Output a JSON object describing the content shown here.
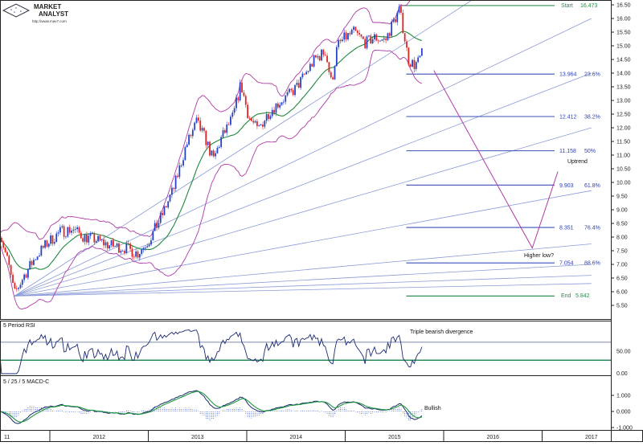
{
  "logo": {
    "line1": "MARKET",
    "line2": "ANALYST",
    "url": "http://www.mav7.com"
  },
  "chart_data": [
    {
      "type": "candlestick",
      "panel": "price",
      "x_unit": "year",
      "xlim": [
        2011.49,
        2017.5
      ],
      "ylim": [
        5.5,
        16.5
      ],
      "y_ticks": [
        "16.50",
        "16.00",
        "15.50",
        "15.00",
        "14.50",
        "14.00",
        "13.50",
        "13.00",
        "12.50",
        "12.00",
        "11.50",
        "11.00",
        "10.50",
        "10.00",
        "9.50",
        "9.00",
        "8.50",
        "8.00",
        "7.50",
        "7.00",
        "6.50",
        "6.00",
        "5.50"
      ],
      "x_ticks": [
        "11",
        "2012",
        "2013",
        "2014",
        "2015",
        "2016",
        "2017"
      ],
      "approx_close": {
        "t": [
          2011.49,
          2011.58,
          2011.64,
          2011.74,
          2011.86,
          2011.98,
          2012.11,
          2012.23,
          2012.35,
          2012.47,
          2012.6,
          2012.77,
          2012.89,
          2013.01,
          2013.14,
          2013.26,
          2013.38,
          2013.49,
          2013.58,
          2013.66,
          2013.74,
          2013.86,
          2013.94,
          2014.02,
          2014.11,
          2014.23,
          2014.35,
          2014.43,
          2014.51,
          2014.6,
          2014.69,
          2014.8,
          2014.86,
          2014.92,
          2015.0,
          2015.09,
          2015.21,
          2015.29,
          2015.41,
          2015.49,
          2015.55,
          2015.59,
          2015.64,
          2015.7,
          2015.74,
          2015.78
        ],
        "price": [
          8.2,
          7.0,
          5.9,
          6.6,
          7.3,
          7.8,
          8.2,
          8.3,
          8.0,
          7.9,
          7.7,
          7.6,
          7.4,
          7.9,
          8.8,
          9.8,
          11.3,
          12.2,
          11.6,
          10.8,
          11.6,
          12.4,
          13.6,
          12.4,
          11.9,
          12.6,
          13.0,
          13.2,
          13.5,
          14.0,
          14.5,
          14.8,
          13.6,
          15.0,
          15.3,
          15.5,
          15.1,
          15.3,
          15.2,
          15.9,
          16.3,
          15.6,
          14.5,
          14.3,
          14.4,
          14.7
        ]
      },
      "colors": {
        "up": "#2443c8",
        "down": "#e02424",
        "moving_average": "#1f8a3c",
        "bands": "#b03aa8",
        "fan": "#8a9ad8",
        "fib": "#3a4fb8",
        "fib_ends": "#2f8f52",
        "projection": "#b03aa8"
      },
      "fibonacci": {
        "start": {
          "label": "Start",
          "value": "16.473",
          "price": 16.473
        },
        "end": {
          "label": "End",
          "value": "5.842",
          "price": 5.842
        },
        "levels": [
          {
            "value": "13.964",
            "pct": "23.6%",
            "price": 13.964
          },
          {
            "value": "12.412",
            "pct": "38.2%",
            "price": 12.412
          },
          {
            "value": "11.158",
            "pct": "50%",
            "price": 11.158
          },
          {
            "value": "9.903",
            "pct": "61.8%",
            "price": 9.903
          },
          {
            "value": "8.351",
            "pct": "76.4%",
            "price": 8.351
          },
          {
            "value": "7.054",
            "pct": "88.6%",
            "price": 7.054
          }
        ]
      },
      "fan_origin": {
        "t": 2011.64,
        "price": 5.842
      },
      "fan_end_prices_at_2017_5": [
        19.5,
        16.0,
        14.0,
        12.0,
        9.7,
        7.75,
        7.0,
        6.6,
        6.3
      ],
      "projection": {
        "t": [
          2015.9,
          2016.9,
          2017.16
        ],
        "price": [
          14.1,
          7.6,
          10.4
        ]
      },
      "annotations": {
        "uptrend": "Uptrend",
        "higher_low": "Higher low?"
      }
    },
    {
      "type": "line",
      "panel": "rsi",
      "title": "5 Period RSI",
      "period": 5,
      "levels": [
        70,
        30
      ],
      "y_ticks": [
        "50.00",
        "0.00"
      ],
      "annotation": "Triple bearish divergence"
    },
    {
      "type": "line",
      "panel": "macd",
      "title": "5 / 25 / 5 MACD-C",
      "params": [
        5,
        25,
        5
      ],
      "y_ticks": [
        "1.000",
        "0.000",
        "-1.000"
      ],
      "annotation": "Bullish"
    }
  ]
}
